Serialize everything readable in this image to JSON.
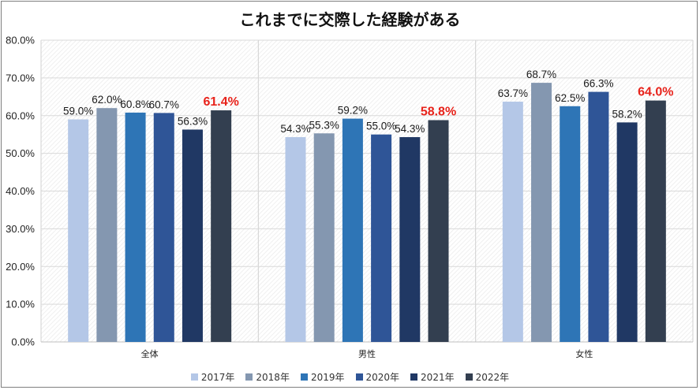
{
  "chart_data": {
    "type": "bar",
    "title": "これまでに交際した経験がある",
    "categories": [
      "全体",
      "男性",
      "女性"
    ],
    "series": [
      {
        "name": "2017年",
        "color": "#b4c7e7",
        "values": [
          59.0,
          54.3,
          63.7
        ],
        "labels": [
          "59.0%",
          "54.3%",
          "63.7%"
        ]
      },
      {
        "name": "2018年",
        "color": "#8497b0",
        "values": [
          62.0,
          55.3,
          68.7
        ],
        "labels": [
          "62.0%",
          "55.3%",
          "68.7%"
        ]
      },
      {
        "name": "2019年",
        "color": "#2e75b6",
        "values": [
          60.8,
          59.2,
          62.5
        ],
        "labels": [
          "60.8%",
          "59.2%",
          "62.5%"
        ]
      },
      {
        "name": "2020年",
        "color": "#2f5597",
        "values": [
          60.7,
          55.0,
          66.3
        ],
        "labels": [
          "60.7%",
          "55.0%",
          "66.3%"
        ]
      },
      {
        "name": "2021年",
        "color": "#203864",
        "values": [
          56.3,
          54.3,
          58.2
        ],
        "labels": [
          "56.3%",
          "54.3%",
          "58.2%"
        ]
      },
      {
        "name": "2022年",
        "color": "#333f50",
        "values": [
          61.4,
          58.8,
          64.0
        ],
        "labels": [
          "61.4%",
          "58.8%",
          "64.0%"
        ],
        "highlight": true
      }
    ],
    "y_ticks": [
      "0.0%",
      "10.0%",
      "20.0%",
      "30.0%",
      "40.0%",
      "50.0%",
      "60.0%",
      "70.0%",
      "80.0%"
    ],
    "ylim": [
      0,
      80
    ],
    "xlabel": "",
    "ylabel": "",
    "legend_position": "bottom",
    "highlight_color": "#e8231b"
  }
}
